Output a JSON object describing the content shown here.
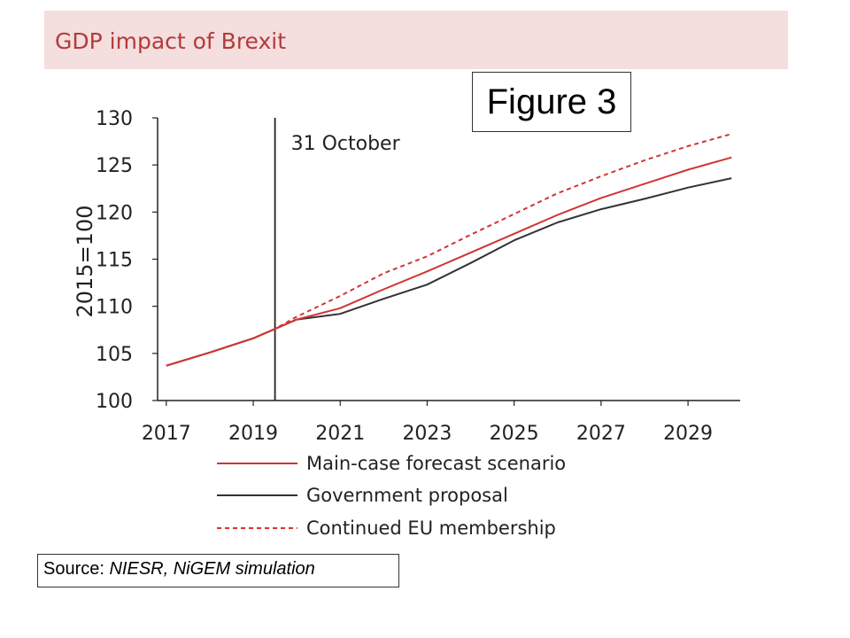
{
  "header": {
    "title": "GDP impact of Brexit",
    "figure_label": "Figure 3"
  },
  "source": {
    "prefix": "Source: ",
    "text": "NIESR, NiGEM simulation"
  },
  "colors": {
    "title_bg": "#f4dede",
    "title_text": "#b33a3a",
    "main_case": "#d03535",
    "government": "#333333",
    "continued_eu": "#d03535"
  },
  "chart_data": {
    "type": "line",
    "title": "GDP impact of Brexit",
    "ylabel": "2015=100",
    "xlabel": "",
    "ylim": [
      100,
      130
    ],
    "xlim": [
      2016.8,
      2030.2
    ],
    "yticks": [
      100,
      105,
      110,
      115,
      120,
      125,
      130
    ],
    "xticks": [
      2017,
      2019,
      2021,
      2023,
      2025,
      2027,
      2029
    ],
    "x": [
      2017,
      2018,
      2019,
      2019.5,
      2020,
      2021,
      2022,
      2023,
      2024,
      2025,
      2026,
      2027,
      2028,
      2029,
      2030
    ],
    "series": [
      {
        "name": "Main-case forecast scenario",
        "style": "solid",
        "color": "#d03535",
        "values": [
          103.7,
          105.1,
          106.6,
          107.6,
          108.6,
          109.8,
          111.8,
          113.7,
          115.7,
          117.7,
          119.7,
          121.5,
          123.0,
          124.5,
          125.8
        ]
      },
      {
        "name": "Government proposal",
        "style": "solid",
        "color": "#333333",
        "values": [
          103.7,
          105.1,
          106.6,
          107.6,
          108.6,
          109.2,
          110.8,
          112.3,
          114.6,
          117.0,
          118.9,
          120.3,
          121.4,
          122.6,
          123.6
        ]
      },
      {
        "name": "Continued EU membership",
        "style": "dashed",
        "color": "#d03535",
        "values": [
          103.7,
          105.1,
          106.6,
          107.6,
          108.9,
          111.1,
          113.5,
          115.3,
          117.6,
          119.8,
          122.0,
          123.8,
          125.5,
          127.0,
          128.3
        ]
      }
    ],
    "annotations": [
      {
        "text": "31 October",
        "x": 2019.5,
        "type": "vertical-line"
      }
    ],
    "grid": false,
    "legend_position": "bottom"
  }
}
